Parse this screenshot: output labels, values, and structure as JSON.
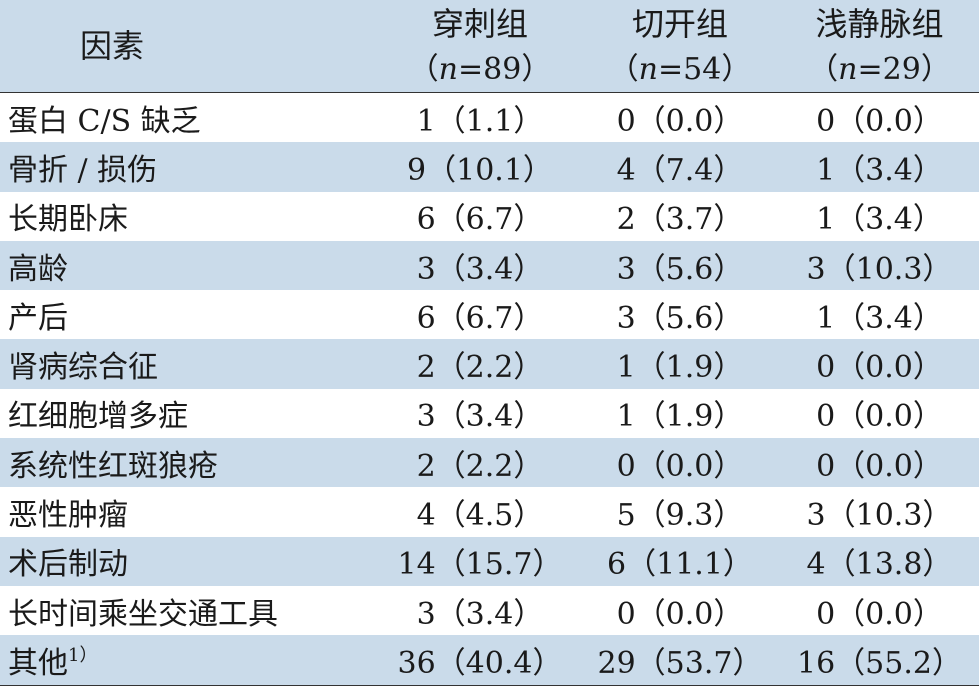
{
  "header": {
    "factor": "因素",
    "groups": [
      {
        "name": "穿刺组",
        "n_open": "（",
        "n_var": "n",
        "n_value": "=89",
        "n_close": "）"
      },
      {
        "name": "切开组",
        "n_open": "（",
        "n_var": "n",
        "n_value": "=54",
        "n_close": "）"
      },
      {
        "name": "浅静脉组",
        "n_open": "（",
        "n_var": "n",
        "n_value": "=29",
        "n_close": "）"
      }
    ]
  },
  "rows": [
    {
      "factor": "蛋白 C/S 缺乏",
      "note": "",
      "values": [
        "1（1.1）",
        "0（0.0）",
        "0（0.0）"
      ]
    },
    {
      "factor": "骨折 / 损伤",
      "note": "",
      "values": [
        "9（10.1）",
        "4（7.4）",
        "1（3.4）"
      ]
    },
    {
      "factor": "长期卧床",
      "note": "",
      "values": [
        "6（6.7）",
        "2（3.7）",
        "1（3.4）"
      ]
    },
    {
      "factor": "高龄",
      "note": "",
      "values": [
        "3（3.4）",
        "3（5.6）",
        "3（10.3）"
      ]
    },
    {
      "factor": "产后",
      "note": "",
      "values": [
        "6（6.7）",
        "3（5.6）",
        "1（3.4）"
      ]
    },
    {
      "factor": "肾病综合征",
      "note": "",
      "values": [
        "2（2.2）",
        "1（1.9）",
        "0（0.0）"
      ]
    },
    {
      "factor": "红细胞增多症",
      "note": "",
      "values": [
        "3（3.4）",
        "1（1.9）",
        "0（0.0）"
      ]
    },
    {
      "factor": "系统性红斑狼疮",
      "note": "",
      "values": [
        "2（2.2）",
        "0（0.0）",
        "0（0.0）"
      ]
    },
    {
      "factor": "恶性肿瘤",
      "note": "",
      "values": [
        "4（4.5）",
        "5（9.3）",
        "3（10.3）"
      ]
    },
    {
      "factor": "术后制动",
      "note": "",
      "values": [
        "14（15.7）",
        "6（11.1）",
        "4（13.8）"
      ]
    },
    {
      "factor": "长时间乘坐交通工具",
      "note": "",
      "values": [
        "3（3.4）",
        "0（0.0）",
        "0（0.0）"
      ]
    },
    {
      "factor": "其他",
      "note": "1）",
      "values": [
        "36（40.4）",
        "29（53.7）",
        "16（55.2）"
      ]
    }
  ]
}
